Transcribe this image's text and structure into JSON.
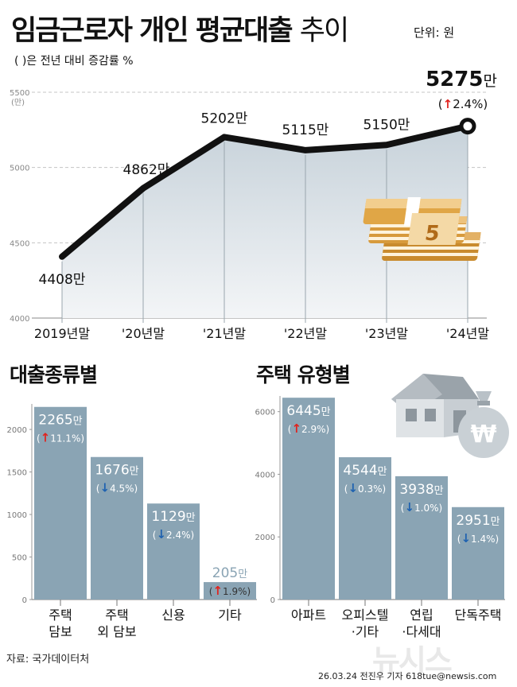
{
  "title": {
    "bold": "임금근로자 개인 평균대출",
    "light": "추이"
  },
  "unit_label": "단위: 원",
  "subnote": "( )은 전년 대비 증감률 %",
  "source": "자료: 국가데이터처",
  "credit": "26.03.24 전진우 기자 618tue@newsis.com",
  "watermark": "뉴시스",
  "colors": {
    "line": "#111111",
    "bar": "#8aa4b4",
    "up": "#e0231e",
    "down": "#1f62b0",
    "area": "#d4dde4"
  },
  "icons": [
    "money-stack-icon",
    "house-icon",
    "money-bag-icon"
  ],
  "chart_data": [
    {
      "type": "line",
      "categories": [
        "2019년말",
        "'20년말",
        "'21년말",
        "'22년말",
        "'23년말",
        "'24년말"
      ],
      "values": [
        4408,
        4862,
        5202,
        5115,
        5150,
        5275
      ],
      "value_labels": [
        "4408만",
        "4862만",
        "5202만",
        "5115만",
        "5150만",
        "5275만"
      ],
      "last_change": {
        "arrow": "↑",
        "text": "2.4%"
      },
      "ylim": [
        4000,
        5500
      ],
      "yticks": [
        "4000",
        "4500",
        "5000",
        "5500"
      ],
      "ytick_values": [
        4000,
        4500,
        5000,
        5500
      ],
      "yunit": "(만)",
      "grid": true
    },
    {
      "type": "bar",
      "title": "대출종류별",
      "categories": [
        [
          "주택",
          "담보"
        ],
        [
          "주택",
          "외 담보"
        ],
        [
          "신용"
        ],
        [
          "기타"
        ]
      ],
      "values": [
        2265,
        1676,
        1129,
        205
      ],
      "value_labels": [
        "2265만",
        "1676만",
        "1129만",
        "205만"
      ],
      "changes": [
        {
          "dir": "up",
          "arrow": "↑",
          "text": "11.1%"
        },
        {
          "dir": "down",
          "arrow": "↓",
          "text": "4.5%"
        },
        {
          "dir": "down",
          "arrow": "↓",
          "text": "2.4%"
        },
        {
          "dir": "up",
          "arrow": "↑",
          "text": "1.9%"
        }
      ],
      "ylim": [
        0,
        2300
      ],
      "yticks": [
        "0",
        "500",
        "1000",
        "1500",
        "2000"
      ],
      "ytick_values": [
        0,
        500,
        1000,
        1500,
        2000
      ]
    },
    {
      "type": "bar",
      "title": "주택 유형별",
      "categories": [
        [
          "아파트"
        ],
        [
          "오피스텔",
          "·기타"
        ],
        [
          "연립",
          "·다세대"
        ],
        [
          "단독주택"
        ]
      ],
      "values": [
        6445,
        4544,
        3938,
        2951
      ],
      "value_labels": [
        "6445만",
        "4544만",
        "3938만",
        "2951만"
      ],
      "changes": [
        {
          "dir": "up",
          "arrow": "↑",
          "text": "2.9%"
        },
        {
          "dir": "down",
          "arrow": "↓",
          "text": "0.3%"
        },
        {
          "dir": "down",
          "arrow": "↓",
          "text": "1.0%"
        },
        {
          "dir": "down",
          "arrow": "↓",
          "text": "1.4%"
        }
      ],
      "ylim": [
        0,
        6500
      ],
      "yticks": [
        "0",
        "2000",
        "4000",
        "6000"
      ],
      "ytick_values": [
        0,
        2000,
        4000,
        6000
      ]
    }
  ]
}
